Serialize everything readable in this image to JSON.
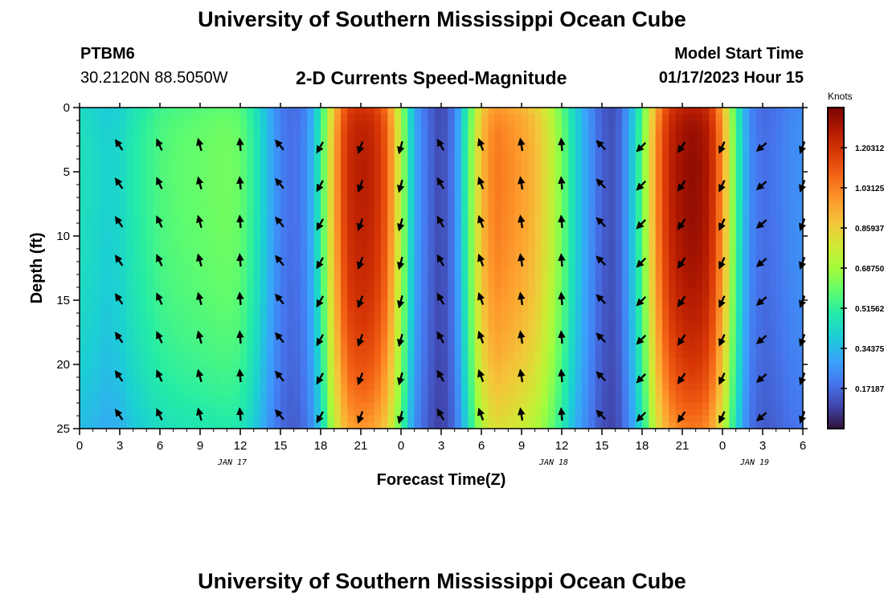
{
  "header": {
    "title": "University of Southern Mississippi Ocean Cube",
    "station": "PTBM6",
    "coords": "30.2120N  88.5050W",
    "subtitle": "2-D Currents Speed-Magnitude",
    "model_start_label": "Model Start Time",
    "model_start_value": "01/17/2023 Hour 15"
  },
  "footer": {
    "title": "University of Southern Mississippi Ocean Cube"
  },
  "chart_data": {
    "type": "heatmap",
    "title": "2-D Currents Speed-Magnitude",
    "xlabel": "Forecast Time(Z)",
    "ylabel": "Depth (ft)",
    "x_range_hours": [
      0,
      54
    ],
    "y_range": [
      0,
      25
    ],
    "x_ticks": [
      {
        "h": 0,
        "label": "0"
      },
      {
        "h": 3,
        "label": "3"
      },
      {
        "h": 6,
        "label": "6"
      },
      {
        "h": 9,
        "label": "9"
      },
      {
        "h": 12,
        "label": "12"
      },
      {
        "h": 15,
        "label": "15"
      },
      {
        "h": 18,
        "label": "18"
      },
      {
        "h": 21,
        "label": "21"
      },
      {
        "h": 24,
        "label": "0"
      },
      {
        "h": 27,
        "label": "3"
      },
      {
        "h": 30,
        "label": "6"
      },
      {
        "h": 33,
        "label": "9"
      },
      {
        "h": 36,
        "label": "12"
      },
      {
        "h": 39,
        "label": "15"
      },
      {
        "h": 42,
        "label": "18"
      },
      {
        "h": 45,
        "label": "21"
      },
      {
        "h": 48,
        "label": "0"
      },
      {
        "h": 51,
        "label": "3"
      },
      {
        "h": 54,
        "label": "6"
      }
    ],
    "y_ticks": [
      {
        "v": 0,
        "label": "0"
      },
      {
        "v": 5,
        "label": "5"
      },
      {
        "v": 10,
        "label": "10"
      },
      {
        "v": 15,
        "label": "15"
      },
      {
        "v": 20,
        "label": "20"
      },
      {
        "v": 25,
        "label": "25"
      }
    ],
    "date_labels": [
      {
        "h": 12,
        "label": "JAN 17"
      },
      {
        "h": 36,
        "label": "JAN 18"
      },
      {
        "h": 51,
        "label": "JAN 19"
      }
    ],
    "colorbar": {
      "label": "Knots",
      "range": [
        0.0,
        1.375
      ],
      "ticks": [
        {
          "v": 0.171875,
          "label": "0.171875"
        },
        {
          "v": 0.34375,
          "label": "0.343750"
        },
        {
          "v": 0.515625,
          "label": "0.515625"
        },
        {
          "v": 0.6875,
          "label": "0.687500"
        },
        {
          "v": 0.859375,
          "label": "0.859375"
        },
        {
          "v": 1.03125,
          "label": "1.031250"
        },
        {
          "v": 1.203125,
          "label": "1.203125"
        }
      ]
    },
    "speed_profile": [
      {
        "h": 0,
        "s": 0.45
      },
      {
        "h": 1,
        "s": 0.43
      },
      {
        "h": 2,
        "s": 0.4
      },
      {
        "h": 3,
        "s": 0.42
      },
      {
        "h": 4,
        "s": 0.48
      },
      {
        "h": 5,
        "s": 0.52
      },
      {
        "h": 6,
        "s": 0.56
      },
      {
        "h": 7,
        "s": 0.58
      },
      {
        "h": 8,
        "s": 0.59
      },
      {
        "h": 9,
        "s": 0.6
      },
      {
        "h": 10,
        "s": 0.61
      },
      {
        "h": 11,
        "s": 0.62
      },
      {
        "h": 12,
        "s": 0.6
      },
      {
        "h": 13,
        "s": 0.5
      },
      {
        "h": 14,
        "s": 0.36
      },
      {
        "h": 15,
        "s": 0.22
      },
      {
        "h": 16,
        "s": 0.18
      },
      {
        "h": 17,
        "s": 0.25
      },
      {
        "h": 18,
        "s": 0.5
      },
      {
        "h": 19,
        "s": 0.95
      },
      {
        "h": 20,
        "s": 1.22
      },
      {
        "h": 21,
        "s": 1.27
      },
      {
        "h": 22,
        "s": 1.24
      },
      {
        "h": 23,
        "s": 1.1
      },
      {
        "h": 24,
        "s": 0.72
      },
      {
        "h": 25,
        "s": 0.32
      },
      {
        "h": 26,
        "s": 0.18
      },
      {
        "h": 27,
        "s": 0.1
      },
      {
        "h": 28,
        "s": 0.22
      },
      {
        "h": 29,
        "s": 0.55
      },
      {
        "h": 30,
        "s": 0.92
      },
      {
        "h": 31,
        "s": 1.05
      },
      {
        "h": 32,
        "s": 1.02
      },
      {
        "h": 33,
        "s": 0.98
      },
      {
        "h": 34,
        "s": 0.92
      },
      {
        "h": 35,
        "s": 0.8
      },
      {
        "h": 36,
        "s": 0.62
      },
      {
        "h": 37,
        "s": 0.42
      },
      {
        "h": 38,
        "s": 0.28
      },
      {
        "h": 39,
        "s": 0.15
      },
      {
        "h": 40,
        "s": 0.12
      },
      {
        "h": 41,
        "s": 0.3
      },
      {
        "h": 42,
        "s": 0.58
      },
      {
        "h": 43,
        "s": 1.0
      },
      {
        "h": 44,
        "s": 1.24
      },
      {
        "h": 45,
        "s": 1.32
      },
      {
        "h": 46,
        "s": 1.34
      },
      {
        "h": 47,
        "s": 1.28
      },
      {
        "h": 48,
        "s": 1.0
      },
      {
        "h": 49,
        "s": 0.55
      },
      {
        "h": 50,
        "s": 0.25
      },
      {
        "h": 51,
        "s": 0.18
      },
      {
        "h": 52,
        "s": 0.2
      },
      {
        "h": 53,
        "s": 0.24
      },
      {
        "h": 54,
        "s": 0.26
      }
    ],
    "arrows_x_hours": [
      3,
      6,
      9,
      12,
      15,
      18,
      21,
      24,
      27,
      30,
      33,
      36,
      39,
      42,
      45,
      48,
      51,
      54
    ],
    "arrows_depth": [
      3,
      6,
      9,
      12,
      15,
      18,
      21,
      24
    ],
    "arrow_direction_by_hour": [
      {
        "h": 3,
        "deg": -35
      },
      {
        "h": 6,
        "deg": -25
      },
      {
        "h": 9,
        "deg": -15
      },
      {
        "h": 12,
        "deg": -5
      },
      {
        "h": 15,
        "deg": -40
      },
      {
        "h": 18,
        "deg": 210
      },
      {
        "h": 21,
        "deg": 200
      },
      {
        "h": 24,
        "deg": 195
      },
      {
        "h": 27,
        "deg": -30
      },
      {
        "h": 30,
        "deg": -20
      },
      {
        "h": 33,
        "deg": -10
      },
      {
        "h": 36,
        "deg": -5
      },
      {
        "h": 39,
        "deg": -45
      },
      {
        "h": 42,
        "deg": 225
      },
      {
        "h": 45,
        "deg": 215
      },
      {
        "h": 48,
        "deg": 205
      },
      {
        "h": 51,
        "deg": 230
      },
      {
        "h": 54,
        "deg": 200
      }
    ]
  }
}
